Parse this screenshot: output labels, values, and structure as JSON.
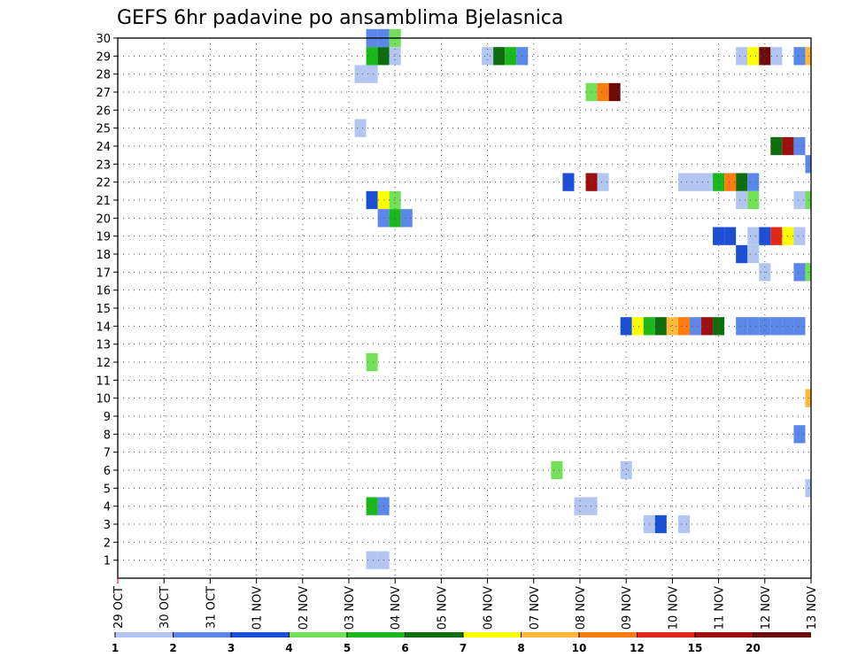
{
  "chart_data": {
    "type": "heatmap",
    "title": "GEFS 6hr padavine po ansamblima Bjelasnica",
    "xlabel": "",
    "ylabel": "",
    "x_tick_labels": [
      "29 OCT",
      "30 OCT",
      "31 OCT",
      "01 NOV",
      "02 NOV",
      "03 NOV",
      "04 NOV",
      "05 NOV",
      "06 NOV",
      "07 NOV",
      "08 NOV",
      "09 NOV",
      "10 NOV",
      "11 NOV",
      "12 NOV",
      "13 NOV"
    ],
    "xlim": [
      0,
      15
    ],
    "x_unit": "days since 29 OCT",
    "ylim": [
      0,
      30
    ],
    "y_tick_labels": [
      1,
      2,
      3,
      4,
      5,
      6,
      7,
      8,
      9,
      10,
      11,
      12,
      13,
      14,
      15,
      16,
      17,
      18,
      19,
      20,
      21,
      22,
      23,
      24,
      25,
      26,
      27,
      28,
      29,
      30
    ],
    "grid": true,
    "legend": {
      "placement": "bottom",
      "labels": [
        "1",
        "2",
        "3",
        "4",
        "5",
        "6",
        "7",
        "8",
        "10",
        "12",
        "15",
        "20"
      ],
      "colors": [
        "#b3c6f2",
        "#5b87e8",
        "#1b4fd6",
        "#73e05a",
        "#1bb81b",
        "#0e6e0e",
        "#ffff00",
        "#ffb83a",
        "#ff7d0f",
        "#e0271a",
        "#a00f0f",
        "#6e0a0a"
      ]
    },
    "cells": [
      {
        "t": 5.5,
        "m": 30,
        "v": 2
      },
      {
        "t": 5.75,
        "m": 30,
        "v": 2
      },
      {
        "t": 6.0,
        "m": 30,
        "v": 4
      },
      {
        "t": 5.5,
        "m": 29,
        "v": 5
      },
      {
        "t": 5.75,
        "m": 29,
        "v": 6
      },
      {
        "t": 6.0,
        "m": 29,
        "v": 1
      },
      {
        "t": 8.0,
        "m": 29,
        "v": 1
      },
      {
        "t": 8.25,
        "m": 29,
        "v": 6
      },
      {
        "t": 8.5,
        "m": 29,
        "v": 5
      },
      {
        "t": 8.75,
        "m": 29,
        "v": 2
      },
      {
        "t": 13.5,
        "m": 29,
        "v": 1
      },
      {
        "t": 13.75,
        "m": 29,
        "v": 7
      },
      {
        "t": 14.0,
        "m": 29,
        "v": 20
      },
      {
        "t": 14.25,
        "m": 29,
        "v": 1
      },
      {
        "t": 14.75,
        "m": 29,
        "v": 2
      },
      {
        "t": 15.0,
        "m": 29,
        "v": 8
      },
      {
        "t": 5.25,
        "m": 28,
        "v": 1
      },
      {
        "t": 5.5,
        "m": 28,
        "v": 1
      },
      {
        "t": 10.25,
        "m": 27,
        "v": 4
      },
      {
        "t": 10.5,
        "m": 27,
        "v": 10
      },
      {
        "t": 10.75,
        "m": 27,
        "v": 20
      },
      {
        "t": 5.25,
        "m": 25,
        "v": 1
      },
      {
        "t": 14.25,
        "m": 24,
        "v": 6
      },
      {
        "t": 14.5,
        "m": 24,
        "v": 15
      },
      {
        "t": 14.75,
        "m": 24,
        "v": 2
      },
      {
        "t": 15.0,
        "m": 23,
        "v": 2
      },
      {
        "t": 9.75,
        "m": 22,
        "v": 3
      },
      {
        "t": 10.25,
        "m": 22,
        "v": 15
      },
      {
        "t": 10.5,
        "m": 22,
        "v": 1
      },
      {
        "t": 12.25,
        "m": 22,
        "v": 1
      },
      {
        "t": 12.5,
        "m": 22,
        "v": 1
      },
      {
        "t": 12.75,
        "m": 22,
        "v": 1
      },
      {
        "t": 13.0,
        "m": 22,
        "v": 5
      },
      {
        "t": 13.25,
        "m": 22,
        "v": 10
      },
      {
        "t": 13.5,
        "m": 22,
        "v": 6
      },
      {
        "t": 13.75,
        "m": 22,
        "v": 2
      },
      {
        "t": 5.5,
        "m": 21,
        "v": 3
      },
      {
        "t": 5.75,
        "m": 21,
        "v": 7
      },
      {
        "t": 6.0,
        "m": 21,
        "v": 4
      },
      {
        "t": 13.5,
        "m": 21,
        "v": 1
      },
      {
        "t": 13.75,
        "m": 21,
        "v": 4
      },
      {
        "t": 14.75,
        "m": 21,
        "v": 1
      },
      {
        "t": 15.0,
        "m": 21,
        "v": 4
      },
      {
        "t": 5.75,
        "m": 20,
        "v": 2
      },
      {
        "t": 6.0,
        "m": 20,
        "v": 5
      },
      {
        "t": 6.25,
        "m": 20,
        "v": 2
      },
      {
        "t": 13.0,
        "m": 19,
        "v": 3
      },
      {
        "t": 13.25,
        "m": 19,
        "v": 3
      },
      {
        "t": 13.75,
        "m": 19,
        "v": 1
      },
      {
        "t": 14.0,
        "m": 19,
        "v": 3
      },
      {
        "t": 14.25,
        "m": 19,
        "v": 12
      },
      {
        "t": 14.5,
        "m": 19,
        "v": 7
      },
      {
        "t": 14.75,
        "m": 19,
        "v": 1
      },
      {
        "t": 13.5,
        "m": 18,
        "v": 3
      },
      {
        "t": 13.75,
        "m": 18,
        "v": 1
      },
      {
        "t": 14.0,
        "m": 17,
        "v": 1
      },
      {
        "t": 14.75,
        "m": 17,
        "v": 2
      },
      {
        "t": 15.0,
        "m": 17,
        "v": 4
      },
      {
        "t": 11.0,
        "m": 14,
        "v": 3
      },
      {
        "t": 11.25,
        "m": 14,
        "v": 7
      },
      {
        "t": 11.5,
        "m": 14,
        "v": 5
      },
      {
        "t": 11.75,
        "m": 14,
        "v": 6
      },
      {
        "t": 12.0,
        "m": 14,
        "v": 8
      },
      {
        "t": 12.25,
        "m": 14,
        "v": 10
      },
      {
        "t": 12.5,
        "m": 14,
        "v": 2
      },
      {
        "t": 12.75,
        "m": 14,
        "v": 15
      },
      {
        "t": 13.0,
        "m": 14,
        "v": 6
      },
      {
        "t": 13.5,
        "m": 14,
        "v": 2
      },
      {
        "t": 13.75,
        "m": 14,
        "v": 2
      },
      {
        "t": 14.0,
        "m": 14,
        "v": 2
      },
      {
        "t": 14.25,
        "m": 14,
        "v": 2
      },
      {
        "t": 14.5,
        "m": 14,
        "v": 2
      },
      {
        "t": 14.75,
        "m": 14,
        "v": 2
      },
      {
        "t": 5.5,
        "m": 12,
        "v": 4
      },
      {
        "t": 15.0,
        "m": 10,
        "v": 8
      },
      {
        "t": 14.75,
        "m": 8,
        "v": 2
      },
      {
        "t": 9.5,
        "m": 6,
        "v": 4
      },
      {
        "t": 11.0,
        "m": 6,
        "v": 1
      },
      {
        "t": 15.0,
        "m": 5,
        "v": 1
      },
      {
        "t": 5.5,
        "m": 4,
        "v": 5
      },
      {
        "t": 5.75,
        "m": 4,
        "v": 2
      },
      {
        "t": 10.0,
        "m": 4,
        "v": 1
      },
      {
        "t": 10.25,
        "m": 4,
        "v": 1
      },
      {
        "t": 11.5,
        "m": 3,
        "v": 1
      },
      {
        "t": 11.75,
        "m": 3,
        "v": 3
      },
      {
        "t": 12.25,
        "m": 3,
        "v": 1
      },
      {
        "t": 5.5,
        "m": 1,
        "v": 1
      },
      {
        "t": 5.75,
        "m": 1,
        "v": 1
      }
    ]
  }
}
